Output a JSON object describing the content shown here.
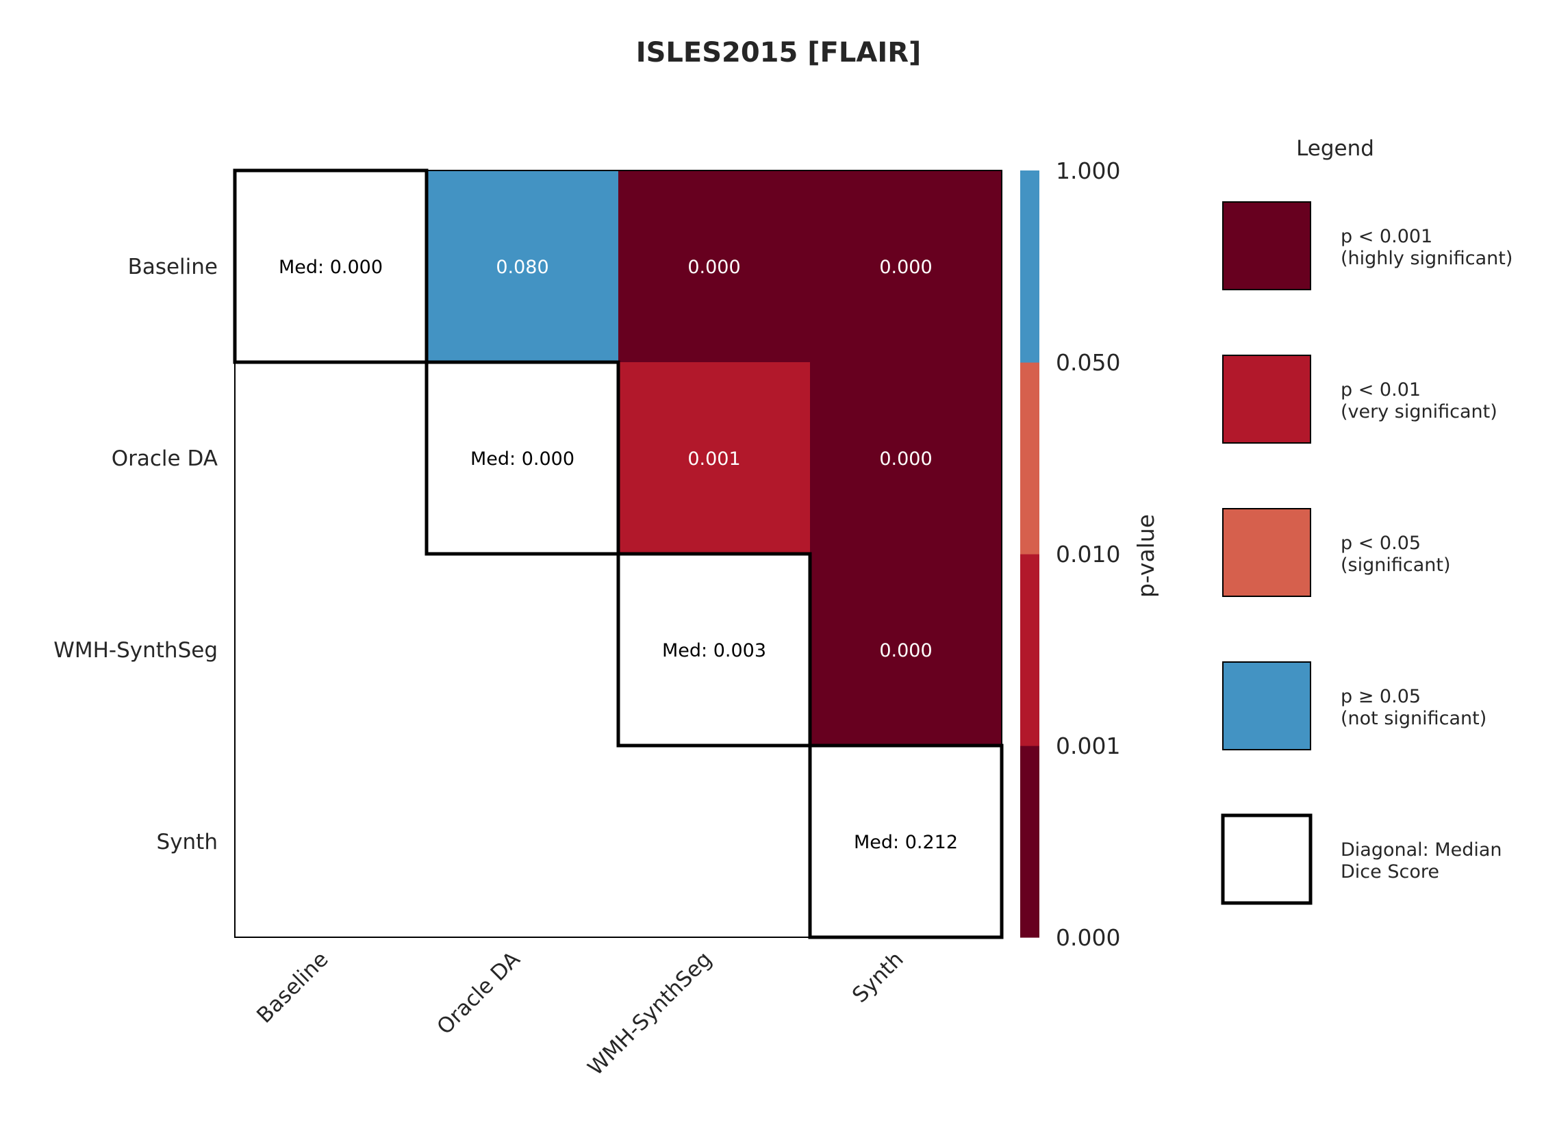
{
  "chart_data": {
    "type": "heatmap",
    "title": "ISLES2015 [FLAIR]",
    "row_labels": [
      "Baseline",
      "Oracle DA",
      "WMH-SynthSeg",
      "Synth"
    ],
    "col_labels": [
      "Baseline",
      "Oracle DA",
      "WMH-SynthSeg",
      "Synth"
    ],
    "cells": [
      {
        "row": 0,
        "col": 0,
        "kind": "median",
        "value": 0.0,
        "text": "Med: 0.000"
      },
      {
        "row": 0,
        "col": 1,
        "kind": "pvalue",
        "value": 0.08,
        "text": "0.080"
      },
      {
        "row": 0,
        "col": 2,
        "kind": "pvalue",
        "value": 0.0,
        "text": "0.000"
      },
      {
        "row": 0,
        "col": 3,
        "kind": "pvalue",
        "value": 0.0,
        "text": "0.000"
      },
      {
        "row": 1,
        "col": 1,
        "kind": "median",
        "value": 0.0,
        "text": "Med: 0.000"
      },
      {
        "row": 1,
        "col": 2,
        "kind": "pvalue",
        "value": 0.001,
        "text": "0.001"
      },
      {
        "row": 1,
        "col": 3,
        "kind": "pvalue",
        "value": 0.0,
        "text": "0.000"
      },
      {
        "row": 2,
        "col": 2,
        "kind": "median",
        "value": 0.003,
        "text": "Med: 0.003"
      },
      {
        "row": 2,
        "col": 3,
        "kind": "pvalue",
        "value": 0.0,
        "text": "0.000"
      },
      {
        "row": 3,
        "col": 3,
        "kind": "median",
        "value": 0.212,
        "text": "Med: 0.212"
      }
    ],
    "colorbar": {
      "label": "p-value",
      "ticks": [
        "0.000",
        "0.001",
        "0.010",
        "0.050",
        "1.000"
      ],
      "bands": [
        {
          "from": 0.0,
          "to": 0.001,
          "color": "#67001f"
        },
        {
          "from": 0.001,
          "to": 0.01,
          "color": "#b2182b"
        },
        {
          "from": 0.01,
          "to": 0.05,
          "color": "#d6604d"
        },
        {
          "from": 0.05,
          "to": 1.0,
          "color": "#4393c3"
        }
      ]
    },
    "legend": {
      "title": "Legend",
      "placement": "right",
      "items": [
        {
          "line1": "p < 0.001",
          "line2": "(highly significant)",
          "color": "#67001f"
        },
        {
          "line1": "p < 0.01",
          "line2": "(very significant)",
          "color": "#b2182b"
        },
        {
          "line1": "p < 0.05",
          "line2": "(significant)",
          "color": "#d6604d"
        },
        {
          "line1": "p ≥ 0.05",
          "line2": "(not significant)",
          "color": "#4393c3"
        },
        {
          "line1": "Diagonal: Median",
          "line2": "Dice Score",
          "color": "#ffffff",
          "outline": true
        }
      ]
    }
  }
}
